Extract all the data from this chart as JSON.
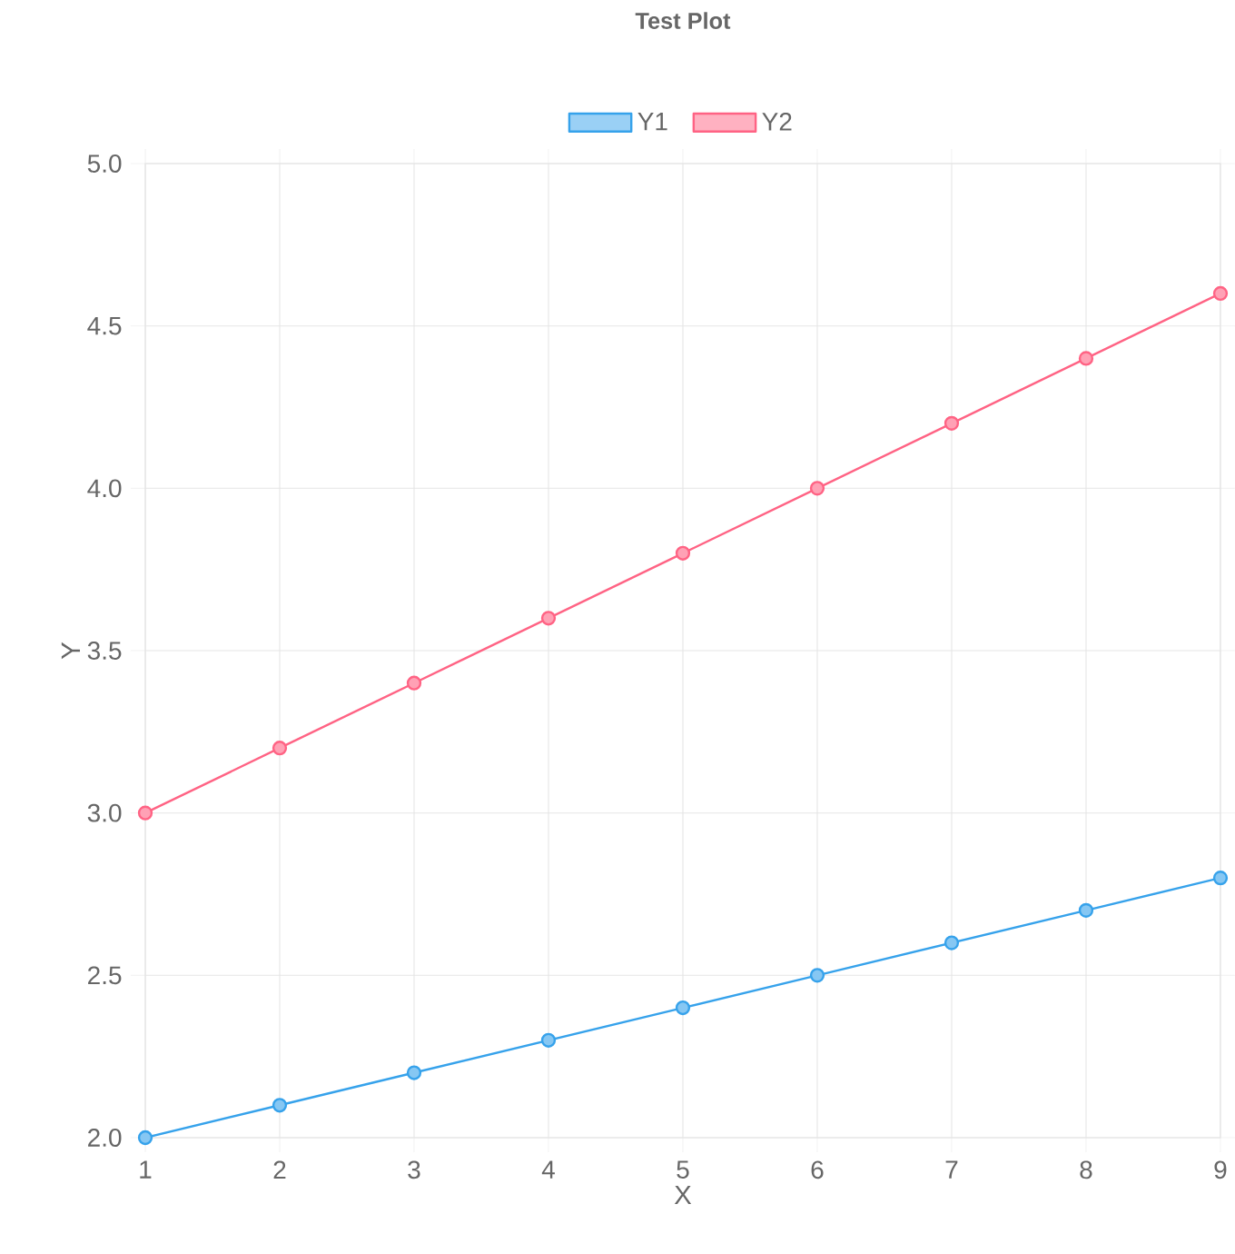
{
  "chart_data": {
    "type": "line",
    "title": "Test Plot",
    "xlabel": "X",
    "ylabel": "Y",
    "x": [
      1,
      2,
      3,
      4,
      5,
      6,
      7,
      8,
      9
    ],
    "series": [
      {
        "name": "Y1",
        "color": "#36a2eb",
        "values": [
          2.0,
          2.1,
          2.2,
          2.3,
          2.4,
          2.5,
          2.6,
          2.7,
          2.8
        ]
      },
      {
        "name": "Y2",
        "color": "#ff6384",
        "values": [
          3.0,
          3.2,
          3.4,
          3.6,
          3.8,
          4.0,
          4.2,
          4.4,
          4.6
        ]
      }
    ],
    "xlim": [
      1,
      9
    ],
    "xticks": [
      1,
      2,
      3,
      4,
      5,
      6,
      7,
      8,
      9
    ],
    "ylim": [
      2,
      5
    ],
    "yticks": [
      {
        "value": 2,
        "label": "2.0"
      },
      {
        "value": 2.5,
        "label": "2.5"
      },
      {
        "value": 3,
        "label": "3.0"
      },
      {
        "value": 3.5,
        "label": "3.5"
      },
      {
        "value": 4,
        "label": "4.0"
      },
      {
        "value": 4.5,
        "label": "4.5"
      },
      {
        "value": 5,
        "label": "5.0"
      }
    ],
    "grid": true,
    "legend": "top",
    "marker": "circle",
    "line_style": "solid"
  }
}
